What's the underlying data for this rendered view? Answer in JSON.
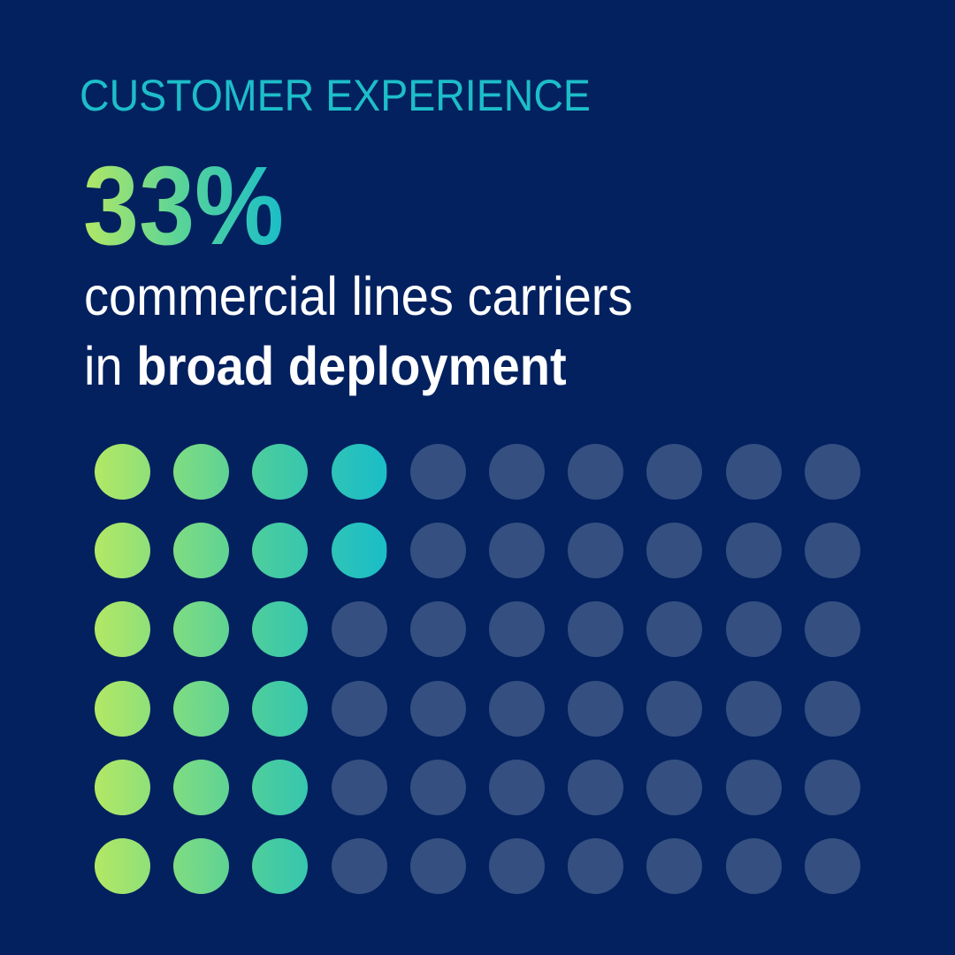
{
  "eyebrow": "CUSTOMER EXPERIENCE",
  "stat": "33%",
  "description": {
    "line1": "commercial lines carriers",
    "line2_regular": "in ",
    "line2_bold": "broad deployment"
  },
  "colors": {
    "background": "#03215F",
    "eyebrow": "#1DBDC9",
    "gradient_start": "#B3E865",
    "gradient_end": "#1ABDC8",
    "inactive_dot": "#344F80",
    "text": "#FFFFFF"
  },
  "chart_data": {
    "type": "waffle",
    "title": "33% commercial lines carriers in broad deployment",
    "category": "CUSTOMER EXPERIENCE",
    "rows": 6,
    "columns": 10,
    "total": 60,
    "filled": 20,
    "percent": 33,
    "fill_order": "column-major (top to bottom, left to right)",
    "filled_by_column": [
      6,
      6,
      6,
      2,
      0,
      0,
      0,
      0,
      0,
      0
    ]
  }
}
